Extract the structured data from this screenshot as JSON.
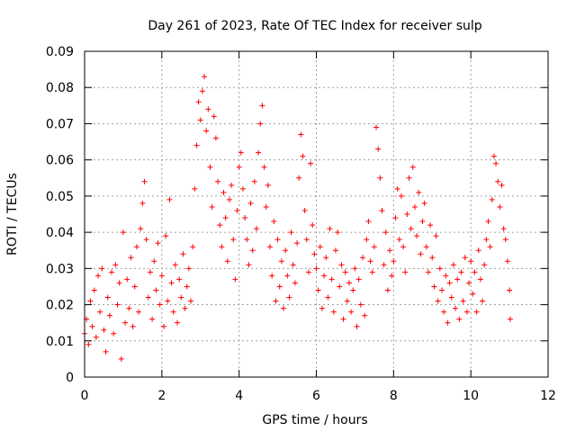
{
  "chart_data": {
    "type": "scatter",
    "title": "Day 261 of 2023, Rate Of TEC Index for receiver sulp",
    "xlabel": "GPS time / hours",
    "ylabel": "ROTI / TECUs",
    "xlim": [
      0,
      12
    ],
    "ylim": [
      0,
      0.09
    ],
    "xticks": [
      0,
      2,
      4,
      6,
      8,
      10,
      12
    ],
    "xtick_labels": [
      "0",
      "2",
      "4",
      "6",
      "8",
      "10",
      "12"
    ],
    "yticks": [
      0,
      0.01,
      0.02,
      0.03,
      0.04,
      0.05,
      0.06,
      0.07,
      0.08,
      0.09
    ],
    "ytick_labels": [
      "0",
      "0.01",
      "0.02",
      "0.03",
      "0.04",
      "0.05",
      "0.06",
      "0.07",
      "0.08",
      "0.09"
    ],
    "grid": true,
    "marker": "+",
    "color": "#ff0000",
    "series": [
      {
        "name": "ROTI",
        "points": [
          [
            0.0,
            0.012
          ],
          [
            0.05,
            0.016
          ],
          [
            0.1,
            0.009
          ],
          [
            0.15,
            0.021
          ],
          [
            0.2,
            0.014
          ],
          [
            0.25,
            0.024
          ],
          [
            0.3,
            0.011
          ],
          [
            0.35,
            0.028
          ],
          [
            0.4,
            0.018
          ],
          [
            0.45,
            0.03
          ],
          [
            0.5,
            0.013
          ],
          [
            0.55,
            0.007
          ],
          [
            0.6,
            0.022
          ],
          [
            0.65,
            0.017
          ],
          [
            0.7,
            0.029
          ],
          [
            0.75,
            0.012
          ],
          [
            0.8,
            0.031
          ],
          [
            0.85,
            0.02
          ],
          [
            0.9,
            0.026
          ],
          [
            0.95,
            0.005
          ],
          [
            1.0,
            0.04
          ],
          [
            1.05,
            0.015
          ],
          [
            1.1,
            0.027
          ],
          [
            1.15,
            0.019
          ],
          [
            1.2,
            0.033
          ],
          [
            1.25,
            0.014
          ],
          [
            1.3,
            0.025
          ],
          [
            1.35,
            0.036
          ],
          [
            1.4,
            0.018
          ],
          [
            1.45,
            0.041
          ],
          [
            1.5,
            0.048
          ],
          [
            1.55,
            0.054
          ],
          [
            1.6,
            0.038
          ],
          [
            1.65,
            0.022
          ],
          [
            1.7,
            0.029
          ],
          [
            1.75,
            0.016
          ],
          [
            1.8,
            0.032
          ],
          [
            1.85,
            0.024
          ],
          [
            1.9,
            0.037
          ],
          [
            1.95,
            0.02
          ],
          [
            2.0,
            0.028
          ],
          [
            2.05,
            0.014
          ],
          [
            2.1,
            0.039
          ],
          [
            2.15,
            0.021
          ],
          [
            2.2,
            0.049
          ],
          [
            2.25,
            0.026
          ],
          [
            2.3,
            0.018
          ],
          [
            2.35,
            0.031
          ],
          [
            2.4,
            0.015
          ],
          [
            2.45,
            0.027
          ],
          [
            2.5,
            0.022
          ],
          [
            2.55,
            0.034
          ],
          [
            2.6,
            0.019
          ],
          [
            2.65,
            0.025
          ],
          [
            2.7,
            0.03
          ],
          [
            2.75,
            0.021
          ],
          [
            2.8,
            0.036
          ],
          [
            2.85,
            0.052
          ],
          [
            2.9,
            0.064
          ],
          [
            2.95,
            0.076
          ],
          [
            3.0,
            0.071
          ],
          [
            3.05,
            0.079
          ],
          [
            3.1,
            0.083
          ],
          [
            3.15,
            0.068
          ],
          [
            3.2,
            0.074
          ],
          [
            3.25,
            0.058
          ],
          [
            3.3,
            0.047
          ],
          [
            3.35,
            0.072
          ],
          [
            3.4,
            0.066
          ],
          [
            3.45,
            0.054
          ],
          [
            3.5,
            0.042
          ],
          [
            3.55,
            0.036
          ],
          [
            3.6,
            0.051
          ],
          [
            3.65,
            0.044
          ],
          [
            3.7,
            0.032
          ],
          [
            3.75,
            0.049
          ],
          [
            3.8,
            0.053
          ],
          [
            3.85,
            0.038
          ],
          [
            3.9,
            0.027
          ],
          [
            3.95,
            0.046
          ],
          [
            4.0,
            0.058
          ],
          [
            4.05,
            0.062
          ],
          [
            4.1,
            0.052
          ],
          [
            4.15,
            0.044
          ],
          [
            4.2,
            0.038
          ],
          [
            4.25,
            0.031
          ],
          [
            4.3,
            0.048
          ],
          [
            4.35,
            0.035
          ],
          [
            4.4,
            0.054
          ],
          [
            4.45,
            0.041
          ],
          [
            4.5,
            0.062
          ],
          [
            4.55,
            0.07
          ],
          [
            4.6,
            0.075
          ],
          [
            4.65,
            0.058
          ],
          [
            4.7,
            0.047
          ],
          [
            4.75,
            0.053
          ],
          [
            4.8,
            0.036
          ],
          [
            4.85,
            0.028
          ],
          [
            4.9,
            0.043
          ],
          [
            4.95,
            0.021
          ],
          [
            5.0,
            0.038
          ],
          [
            5.05,
            0.025
          ],
          [
            5.1,
            0.032
          ],
          [
            5.15,
            0.019
          ],
          [
            5.2,
            0.035
          ],
          [
            5.25,
            0.028
          ],
          [
            5.3,
            0.022
          ],
          [
            5.35,
            0.04
          ],
          [
            5.4,
            0.031
          ],
          [
            5.45,
            0.026
          ],
          [
            5.5,
            0.037
          ],
          [
            5.55,
            0.055
          ],
          [
            5.6,
            0.067
          ],
          [
            5.65,
            0.061
          ],
          [
            5.7,
            0.046
          ],
          [
            5.75,
            0.038
          ],
          [
            5.8,
            0.029
          ],
          [
            5.85,
            0.059
          ],
          [
            5.9,
            0.042
          ],
          [
            5.95,
            0.034
          ],
          [
            6.0,
            0.03
          ],
          [
            6.05,
            0.024
          ],
          [
            6.1,
            0.036
          ],
          [
            6.15,
            0.019
          ],
          [
            6.2,
            0.028
          ],
          [
            6.25,
            0.033
          ],
          [
            6.3,
            0.022
          ],
          [
            6.35,
            0.041
          ],
          [
            6.4,
            0.027
          ],
          [
            6.45,
            0.018
          ],
          [
            6.5,
            0.035
          ],
          [
            6.55,
            0.04
          ],
          [
            6.6,
            0.025
          ],
          [
            6.65,
            0.031
          ],
          [
            6.7,
            0.016
          ],
          [
            6.75,
            0.029
          ],
          [
            6.8,
            0.021
          ],
          [
            6.85,
            0.026
          ],
          [
            6.9,
            0.018
          ],
          [
            6.95,
            0.024
          ],
          [
            7.0,
            0.03
          ],
          [
            7.05,
            0.014
          ],
          [
            7.1,
            0.027
          ],
          [
            7.15,
            0.02
          ],
          [
            7.2,
            0.033
          ],
          [
            7.25,
            0.017
          ],
          [
            7.3,
            0.038
          ],
          [
            7.35,
            0.043
          ],
          [
            7.4,
            0.032
          ],
          [
            7.45,
            0.029
          ],
          [
            7.5,
            0.036
          ],
          [
            7.55,
            0.069
          ],
          [
            7.6,
            0.063
          ],
          [
            7.65,
            0.055
          ],
          [
            7.7,
            0.046
          ],
          [
            7.75,
            0.031
          ],
          [
            7.8,
            0.04
          ],
          [
            7.85,
            0.024
          ],
          [
            7.9,
            0.035
          ],
          [
            7.95,
            0.028
          ],
          [
            8.0,
            0.032
          ],
          [
            8.05,
            0.044
          ],
          [
            8.1,
            0.052
          ],
          [
            8.15,
            0.038
          ],
          [
            8.2,
            0.05
          ],
          [
            8.25,
            0.036
          ],
          [
            8.3,
            0.029
          ],
          [
            8.35,
            0.045
          ],
          [
            8.4,
            0.055
          ],
          [
            8.45,
            0.041
          ],
          [
            8.5,
            0.058
          ],
          [
            8.55,
            0.047
          ],
          [
            8.6,
            0.039
          ],
          [
            8.65,
            0.051
          ],
          [
            8.7,
            0.034
          ],
          [
            8.75,
            0.043
          ],
          [
            8.8,
            0.048
          ],
          [
            8.85,
            0.036
          ],
          [
            8.9,
            0.029
          ],
          [
            8.95,
            0.042
          ],
          [
            9.0,
            0.033
          ],
          [
            9.05,
            0.025
          ],
          [
            9.1,
            0.039
          ],
          [
            9.15,
            0.021
          ],
          [
            9.2,
            0.03
          ],
          [
            9.25,
            0.024
          ],
          [
            9.3,
            0.018
          ],
          [
            9.35,
            0.028
          ],
          [
            9.4,
            0.015
          ],
          [
            9.45,
            0.026
          ],
          [
            9.5,
            0.022
          ],
          [
            9.55,
            0.031
          ],
          [
            9.6,
            0.019
          ],
          [
            9.65,
            0.027
          ],
          [
            9.7,
            0.016
          ],
          [
            9.75,
            0.029
          ],
          [
            9.8,
            0.021
          ],
          [
            9.85,
            0.033
          ],
          [
            9.9,
            0.018
          ],
          [
            9.95,
            0.026
          ],
          [
            10.0,
            0.032
          ],
          [
            10.05,
            0.023
          ],
          [
            10.1,
            0.029
          ],
          [
            10.15,
            0.018
          ],
          [
            10.2,
            0.035
          ],
          [
            10.25,
            0.027
          ],
          [
            10.3,
            0.021
          ],
          [
            10.35,
            0.031
          ],
          [
            10.4,
            0.038
          ],
          [
            10.45,
            0.043
          ],
          [
            10.5,
            0.036
          ],
          [
            10.55,
            0.049
          ],
          [
            10.6,
            0.061
          ],
          [
            10.65,
            0.059
          ],
          [
            10.7,
            0.054
          ],
          [
            10.75,
            0.047
          ],
          [
            10.8,
            0.053
          ],
          [
            10.85,
            0.041
          ],
          [
            10.9,
            0.038
          ],
          [
            10.95,
            0.032
          ],
          [
            11.0,
            0.024
          ],
          [
            11.02,
            0.016
          ]
        ]
      }
    ]
  }
}
